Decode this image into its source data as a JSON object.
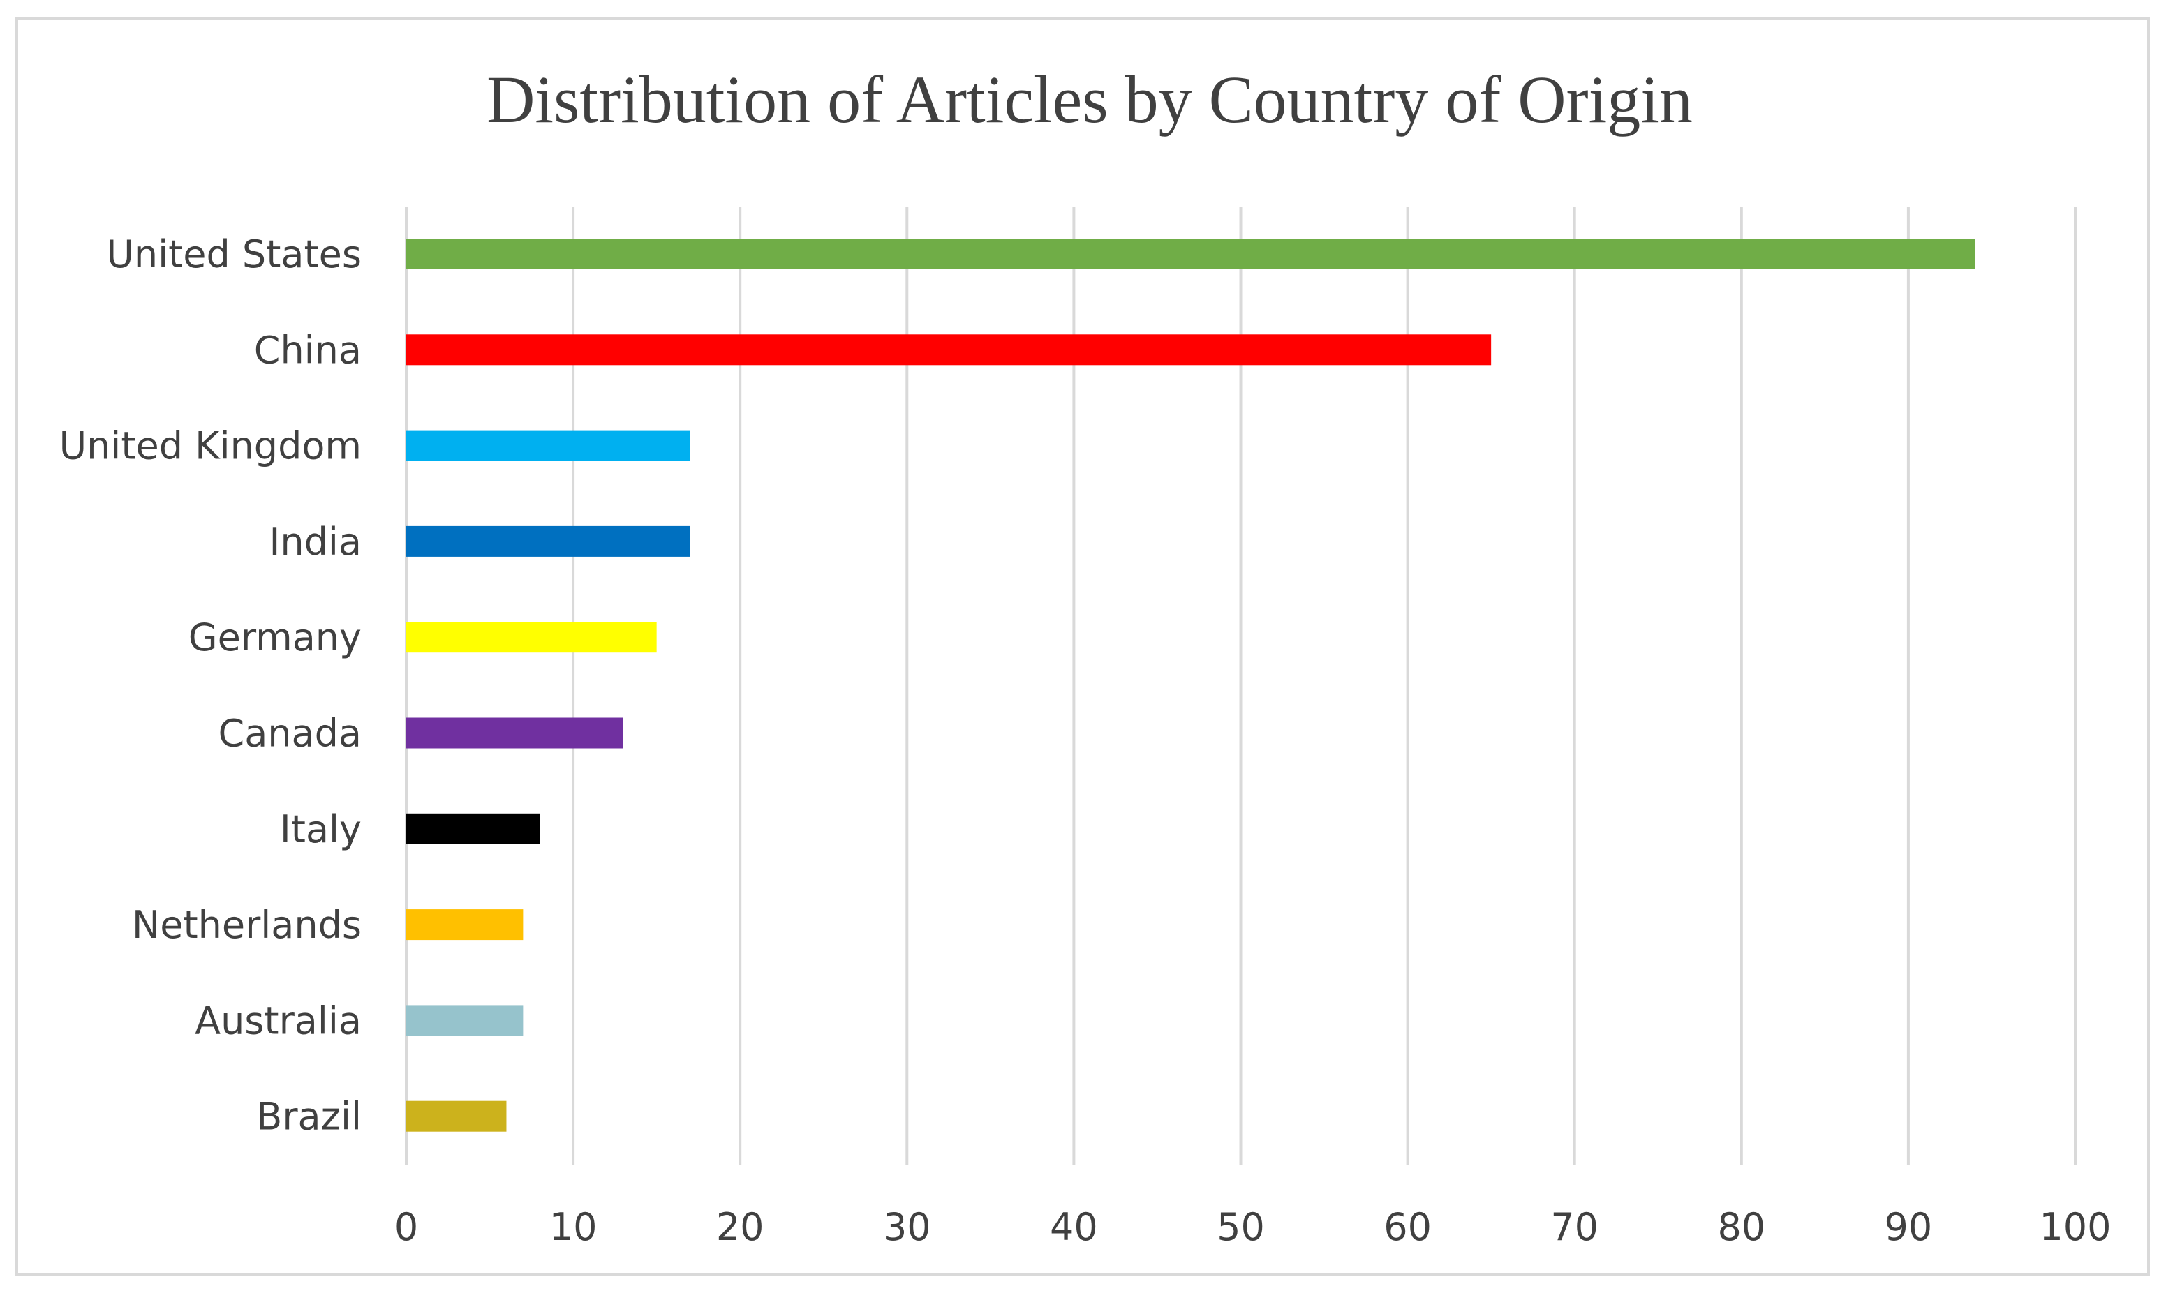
{
  "chart_data": {
    "type": "bar",
    "orientation": "horizontal",
    "title": "Distribution of Articles by Country of Origin",
    "xlabel": "",
    "ylabel": "",
    "xlim": [
      0,
      100
    ],
    "x_ticks": [
      0,
      10,
      20,
      30,
      40,
      50,
      60,
      70,
      80,
      90,
      100
    ],
    "grid": "vertical",
    "legend": "none",
    "categories": [
      "United States",
      "China",
      "United Kingdom",
      "India",
      "Germany",
      "Canada",
      "Italy",
      "Netherlands",
      "Australia",
      "Brazil"
    ],
    "values": [
      94,
      65,
      17,
      17,
      15,
      13,
      8,
      7,
      7,
      6
    ],
    "colors": [
      "#70ad47",
      "#ff0000",
      "#00b0f0",
      "#0070c0",
      "#ffff00",
      "#7030a0",
      "#000000",
      "#ffc000",
      "#96c3cc",
      "#ccb21c"
    ]
  }
}
